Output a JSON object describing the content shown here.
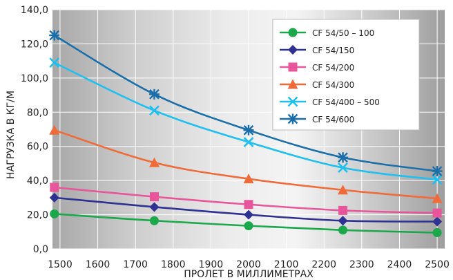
{
  "chart_data": {
    "type": "line",
    "title": "",
    "xlabel": "ПРОЛЕТ В МИЛЛИМЕТРАХ",
    "ylabel": "НАГРУЗКА В КГ/М",
    "xlim": [
      1480,
      2520
    ],
    "ylim": [
      0,
      140
    ],
    "x_ticks": [
      1500,
      1600,
      1700,
      1800,
      1900,
      2000,
      2100,
      2200,
      2300,
      2400,
      2500
    ],
    "y_ticks": [
      0,
      20,
      40,
      60,
      80,
      100,
      120,
      140
    ],
    "y_tick_labels": [
      "0,0",
      "20,0",
      "40,0",
      "60,0",
      "80,0",
      "100,0",
      "120,0",
      "140,0"
    ],
    "grid": true,
    "legend_position": "top-right",
    "x": [
      1485,
      1750,
      2000,
      2250,
      2500
    ],
    "series": [
      {
        "name": "CF 54/50 – 100",
        "color": "#1aa84a",
        "marker": "circle",
        "values": [
          20.5,
          16.5,
          13.5,
          11.0,
          9.5
        ]
      },
      {
        "name": "CF 54/150",
        "color": "#2e3192",
        "marker": "diamond",
        "values": [
          30.0,
          24.5,
          20.0,
          16.5,
          16.0
        ]
      },
      {
        "name": "CF 54/200",
        "color": "#e8559a",
        "marker": "square",
        "values": [
          36.0,
          30.5,
          26.0,
          22.5,
          21.0
        ]
      },
      {
        "name": "CF 54/300",
        "color": "#ef6c3a",
        "marker": "triangle",
        "values": [
          69.5,
          50.5,
          41.0,
          34.5,
          29.5
        ]
      },
      {
        "name": "CF 54/400 – 500",
        "color": "#1fbfef",
        "marker": "x",
        "values": [
          109.0,
          81.0,
          62.5,
          47.5,
          40.5
        ]
      },
      {
        "name": "CF 54/600",
        "color": "#1a6faa",
        "marker": "asterisk",
        "values": [
          125.0,
          90.5,
          69.5,
          53.5,
          45.5
        ]
      }
    ]
  }
}
